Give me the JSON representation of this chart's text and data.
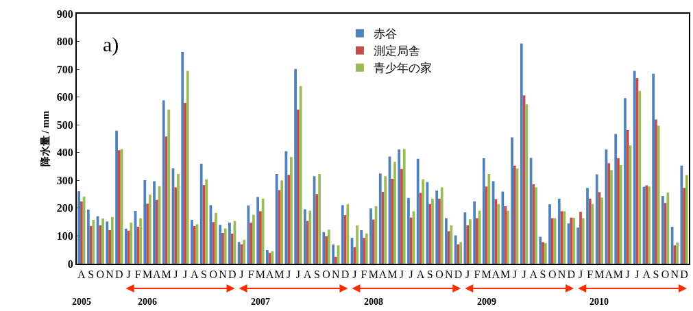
{
  "chart_data": {
    "type": "bar",
    "ylabel": "降水量 / mm",
    "categories": [
      "A",
      "S",
      "O",
      "N",
      "D",
      "J",
      "F",
      "M",
      "A",
      "M",
      "J",
      "J",
      "A",
      "S",
      "O",
      "N",
      "D",
      "J",
      "F",
      "M",
      "A",
      "M",
      "J",
      "J",
      "A",
      "S",
      "O",
      "N",
      "D",
      "J",
      "F",
      "M",
      "A",
      "M",
      "J",
      "J",
      "A",
      "S",
      "O",
      "N",
      "D",
      "J",
      "F",
      "M",
      "A",
      "M",
      "J",
      "J",
      "A",
      "S",
      "O",
      "N",
      "D",
      "J",
      "F",
      "M",
      "A",
      "M",
      "J",
      "J",
      "A",
      "S",
      "O",
      "N",
      "D"
    ],
    "series": [
      {
        "name": "赤谷",
        "color": "#4f81bd",
        "values": [
          261,
          195,
          171,
          152,
          479,
          126,
          190,
          301,
          297,
          588,
          344,
          762,
          158,
          360,
          211,
          140,
          148,
          78,
          210,
          240,
          49,
          323,
          405,
          701,
          196,
          315,
          114,
          69,
          211,
          93,
          121,
          199,
          325,
          386,
          411,
          237,
          378,
          294,
          263,
          164,
          102,
          185,
          224,
          380,
          297,
          260,
          455,
          793,
          381,
          97,
          214,
          234,
          145,
          130,
          273,
          322,
          411,
          467,
          596,
          694,
          277,
          684,
          244,
          133,
          353
        ]
      },
      {
        "name": "測定局舎",
        "color": "#c0504d",
        "values": [
          224,
          136,
          138,
          121,
          409,
          119,
          133,
          216,
          230,
          458,
          275,
          579,
          136,
          283,
          150,
          111,
          108,
          70,
          148,
          189,
          39,
          265,
          320,
          555,
          154,
          251,
          99,
          25,
          175,
          59,
          93,
          159,
          259,
          306,
          341,
          166,
          255,
          215,
          234,
          117,
          70,
          138,
          164,
          278,
          232,
          207,
          353,
          606,
          286,
          78,
          164,
          189,
          166,
          187,
          234,
          258,
          362,
          380,
          481,
          668,
          282,
          519,
          219,
          66,
          273
        ]
      },
      {
        "name": "青少年の家",
        "color": "#9bbb59",
        "values": [
          242,
          158,
          163,
          168,
          413,
          148,
          164,
          249,
          279,
          555,
          323,
          694,
          142,
          304,
          183,
          127,
          154,
          86,
          176,
          234,
          45,
          300,
          384,
          639,
          191,
          323,
          123,
          66,
          214,
          138,
          109,
          207,
          315,
          367,
          413,
          189,
          304,
          234,
          275,
          138,
          78,
          160,
          191,
          323,
          215,
          191,
          343,
          574,
          275,
          74,
          164,
          189,
          166,
          164,
          215,
          238,
          337,
          355,
          426,
          622,
          278,
          497,
          256,
          76,
          319
        ]
      }
    ],
    "ylim": [
      0,
      900
    ],
    "yticks": [
      0,
      100,
      200,
      300,
      400,
      500,
      600,
      700,
      800,
      900
    ],
    "grid": false,
    "legend": "top",
    "annotations": [
      "a)",
      "2005",
      "2006",
      "2007",
      "2008",
      "2009",
      "2010"
    ]
  }
}
